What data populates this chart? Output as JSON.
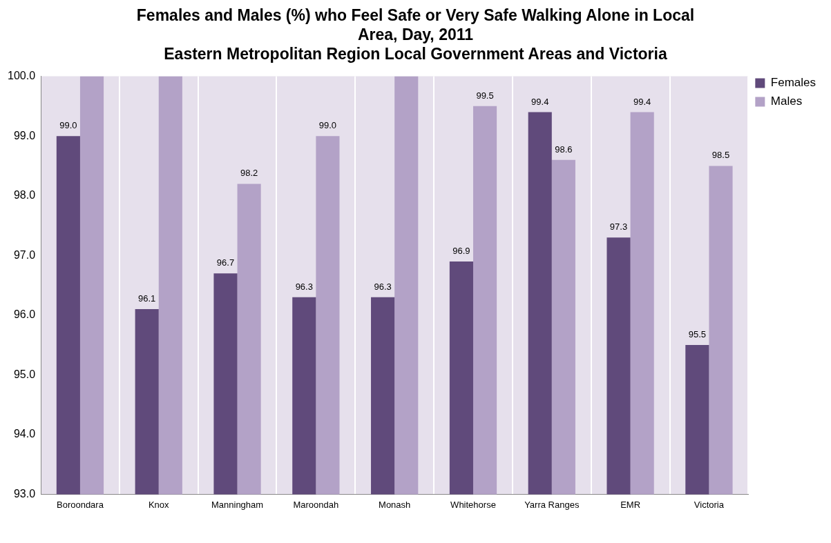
{
  "chart_data": {
    "type": "bar",
    "title": "Females and Males (%) who Feel Safe or Very Safe Walking Alone in Local Area, Day, 2011",
    "subtitle": "Eastern Metropolitan Region Local Government Areas and Victoria",
    "categories": [
      "Boroondara",
      "Knox",
      "Manningham",
      "Maroondah",
      "Monash",
      "Whitehorse",
      "Yarra Ranges",
      "EMR",
      "Victoria"
    ],
    "series": [
      {
        "name": "Females",
        "color": "#604a7b",
        "values": [
          99.0,
          96.1,
          96.7,
          96.3,
          96.3,
          96.9,
          99.4,
          97.3,
          95.5
        ],
        "value_labels": [
          "99.0",
          "96.1",
          "96.7",
          "96.3",
          "96.3",
          "96.9",
          "99.4",
          "97.3",
          "95.5"
        ]
      },
      {
        "name": "Males",
        "color": "#b3a2c7",
        "values": [
          100.0,
          100.0,
          98.2,
          99.0,
          100.0,
          99.5,
          98.6,
          99.4,
          98.5
        ],
        "value_labels": [
          null,
          null,
          "98.2",
          "99.0",
          null,
          "99.5",
          "98.6",
          "99.4",
          "98.5"
        ]
      }
    ],
    "ylim": [
      93,
      100
    ],
    "yticks": [
      {
        "value": 93,
        "label": "93.0"
      },
      {
        "value": 94,
        "label": "94.0"
      },
      {
        "value": 95,
        "label": "95.0"
      },
      {
        "value": 96,
        "label": "96.0"
      },
      {
        "value": 97,
        "label": "97.0"
      },
      {
        "value": 98,
        "label": "98.0"
      },
      {
        "value": 99,
        "label": "99.0"
      },
      {
        "value": 100,
        "label": "100.0"
      }
    ],
    "grid": "x",
    "legend": "top right"
  }
}
